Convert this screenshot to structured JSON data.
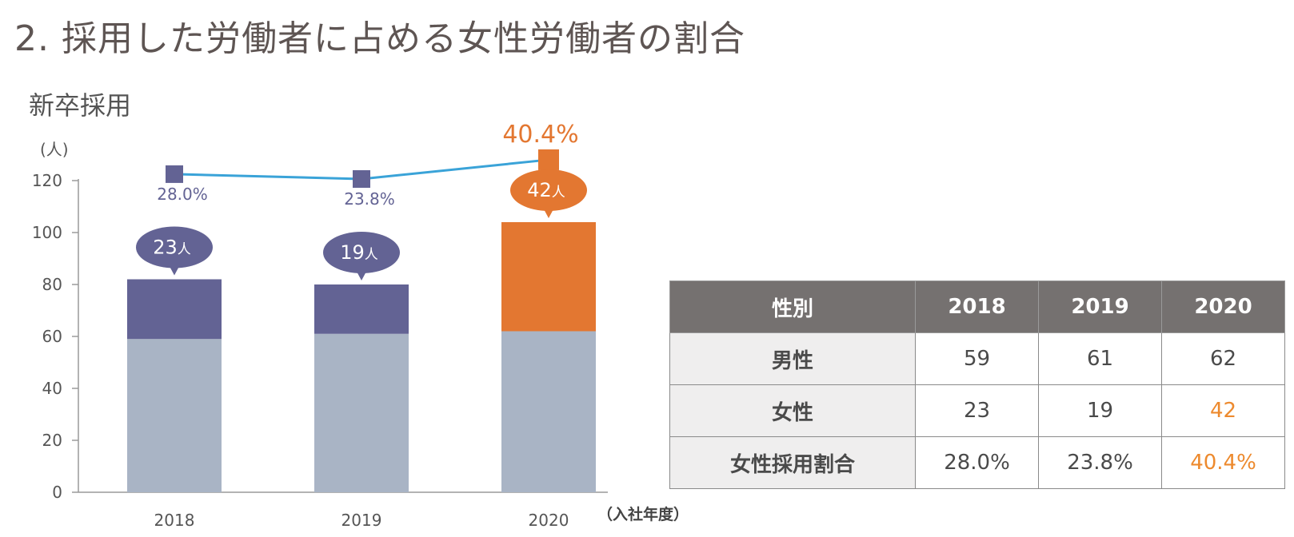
{
  "page_title": "2. 採用した労働者に占める女性労働者の割合",
  "colors": {
    "male": "#a9b4c5",
    "female": "#636394",
    "highlight": "#e37731",
    "line": "#3aa3d8",
    "text": "#555555"
  },
  "chart_data": {
    "type": "bar",
    "stacked": true,
    "title": "新卒採用",
    "ylabel": "(人)",
    "xlabel": "（入社年度）",
    "ylim": [
      0,
      120
    ],
    "yticks": [
      "0",
      "20",
      "40",
      "60",
      "80",
      "100",
      "120"
    ],
    "categories": [
      "2018",
      "2019",
      "2020"
    ],
    "series": [
      {
        "values": [
          59,
          61,
          62
        ]
      },
      {
        "values": [
          23,
          19,
          42
        ]
      }
    ],
    "bubble_labels": [
      {
        "number": "23",
        "unit": "人"
      },
      {
        "number": "19",
        "unit": "人"
      },
      {
        "number": "42",
        "unit": "人"
      }
    ],
    "ratio_line": {
      "values": [
        28.0,
        23.8,
        40.4
      ],
      "labels": [
        "28.0%",
        "23.8%",
        "40.4%"
      ]
    }
  },
  "table": {
    "headers": [
      "性別",
      "2018",
      "2019",
      "2020"
    ],
    "rows": [
      {
        "label": "男性",
        "cells": [
          "59",
          "61",
          "62"
        ]
      },
      {
        "label": "女性",
        "cells": [
          "23",
          "19",
          "42"
        ]
      },
      {
        "label": "女性採用割合",
        "cells": [
          "28.0%",
          "23.8%",
          "40.4%"
        ]
      }
    ]
  }
}
